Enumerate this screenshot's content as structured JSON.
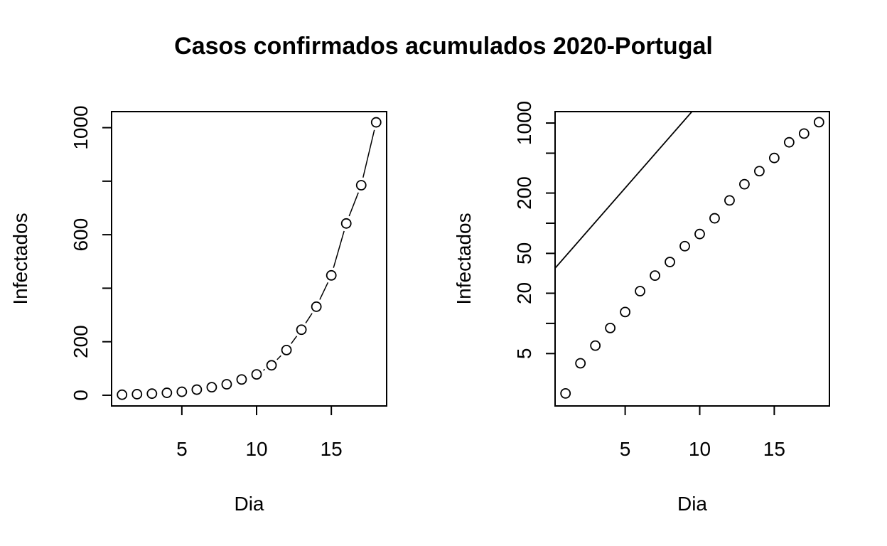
{
  "title": "Casos confirmados acumulados 2020-Portugal",
  "chart_data": [
    {
      "type": "scatter",
      "xlabel": "Dia",
      "ylabel": "Infectados",
      "x": [
        1,
        2,
        3,
        4,
        5,
        6,
        7,
        8,
        9,
        10,
        11,
        12,
        13,
        14,
        15,
        16,
        17,
        18
      ],
      "y": [
        2,
        4,
        6,
        9,
        13,
        21,
        30,
        41,
        59,
        78,
        112,
        169,
        245,
        331,
        448,
        642,
        785,
        1020
      ],
      "xlim": [
        0.3,
        18.7
      ],
      "ylim": [
        -40,
        1060
      ],
      "log_y": false,
      "grid": false,
      "x_ticks": [
        5,
        10,
        15
      ],
      "x_tick_labels": [
        "5",
        "10",
        "15"
      ],
      "y_ticks": [
        0,
        200,
        400,
        600,
        800,
        1000
      ],
      "y_tick_labels": [
        "0",
        "200",
        "",
        "600",
        "",
        "1000"
      ],
      "connecting_line": true
    },
    {
      "type": "scatter",
      "xlabel": "Dia",
      "ylabel": "Infectados",
      "x": [
        1,
        2,
        3,
        4,
        5,
        6,
        7,
        8,
        9,
        10,
        11,
        12,
        13,
        14,
        15,
        16,
        17,
        18
      ],
      "y": [
        2,
        4,
        6,
        9,
        13,
        21,
        30,
        41,
        59,
        78,
        112,
        169,
        245,
        331,
        448,
        642,
        785,
        1020
      ],
      "xlim": [
        0.3,
        18.7
      ],
      "ylim": [
        1.5,
        1300
      ],
      "log_y": true,
      "grid": false,
      "x_ticks": [
        5,
        10,
        15
      ],
      "x_tick_labels": [
        "5",
        "10",
        "15"
      ],
      "y_ticks": [
        5,
        10,
        20,
        50,
        100,
        200,
        500,
        1000
      ],
      "y_tick_labels": [
        "5",
        "",
        "20",
        "50",
        "",
        "200",
        "",
        "1000"
      ],
      "fit_line": {
        "intercept": 1.5,
        "slope": 1.48
      }
    }
  ]
}
